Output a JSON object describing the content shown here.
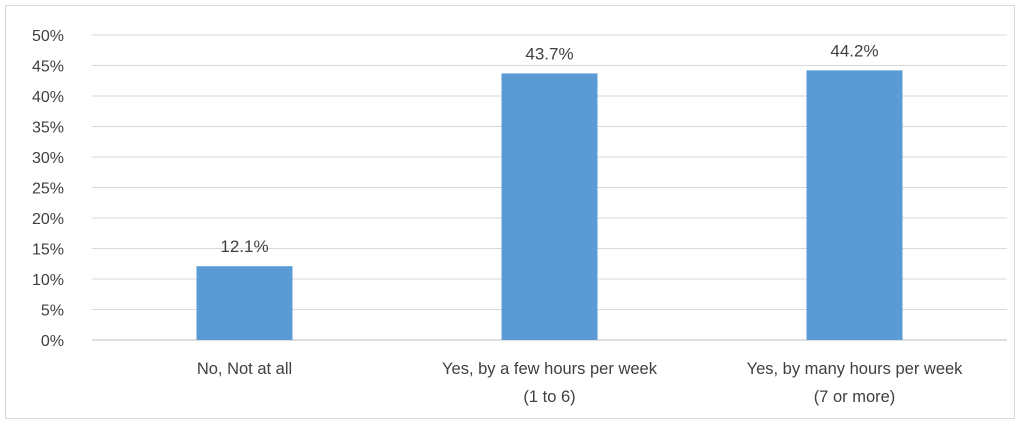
{
  "chart_data": {
    "type": "bar",
    "title": "",
    "xlabel": "",
    "ylabel": "",
    "categories": [
      [
        "No, Not at all"
      ],
      [
        "Yes, by a few hours per week",
        "(1 to 6)"
      ],
      [
        "Yes, by many hours per week",
        "(7 or more)"
      ]
    ],
    "values": [
      12.1,
      43.7,
      44.2
    ],
    "data_labels": [
      "12.1%",
      "43.7%",
      "44.2%"
    ],
    "ylim": [
      0,
      50
    ],
    "yticks": [
      "0%",
      "5%",
      "10%",
      "15%",
      "20%",
      "25%",
      "30%",
      "35%",
      "40%",
      "45%",
      "50%"
    ],
    "grid": true,
    "legend": "none",
    "bar_color": "#5b9bd5",
    "grid_color": "#d9d9d9",
    "text_color": "#404040"
  }
}
